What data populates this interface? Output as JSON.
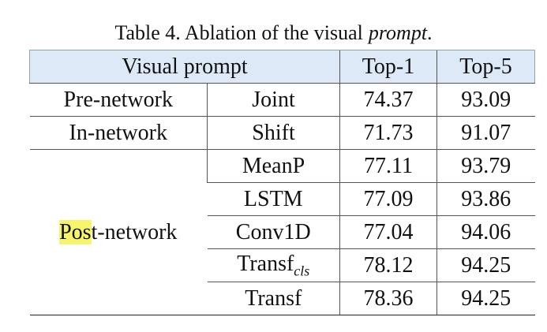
{
  "caption": [
    "Table 4. Ablation of the visual",
    "prompt",
    "."
  ],
  "table": {
    "header": [
      "Visual prompt",
      "Top-1",
      "Top-5"
    ],
    "groups": [
      {
        "name": "Pre-network",
        "rows": [
          {
            "method": "Joint",
            "top1": 74.37,
            "top5": 93.09
          }
        ]
      },
      {
        "name": "In-network",
        "rows": [
          {
            "method": "Shift",
            "top1": 71.73,
            "top5": 91.07
          }
        ]
      },
      {
        "name": "Post-network",
        "rows": [
          {
            "method": "MeanP",
            "top1": 77.11,
            "top5": 93.79
          },
          {
            "method": "LSTM",
            "top1": 77.09,
            "top5": 93.86
          },
          {
            "method": "Conv1D",
            "top1": 77.04,
            "top5": 94.06
          },
          {
            "method": {
              "text": "Transf",
              "subscript": "cls"
            },
            "top1": 78.12,
            "top5": 94.25
          },
          {
            "method": "Transf",
            "top1": 78.36,
            "top5": 94.25
          }
        ]
      }
    ]
  }
}
